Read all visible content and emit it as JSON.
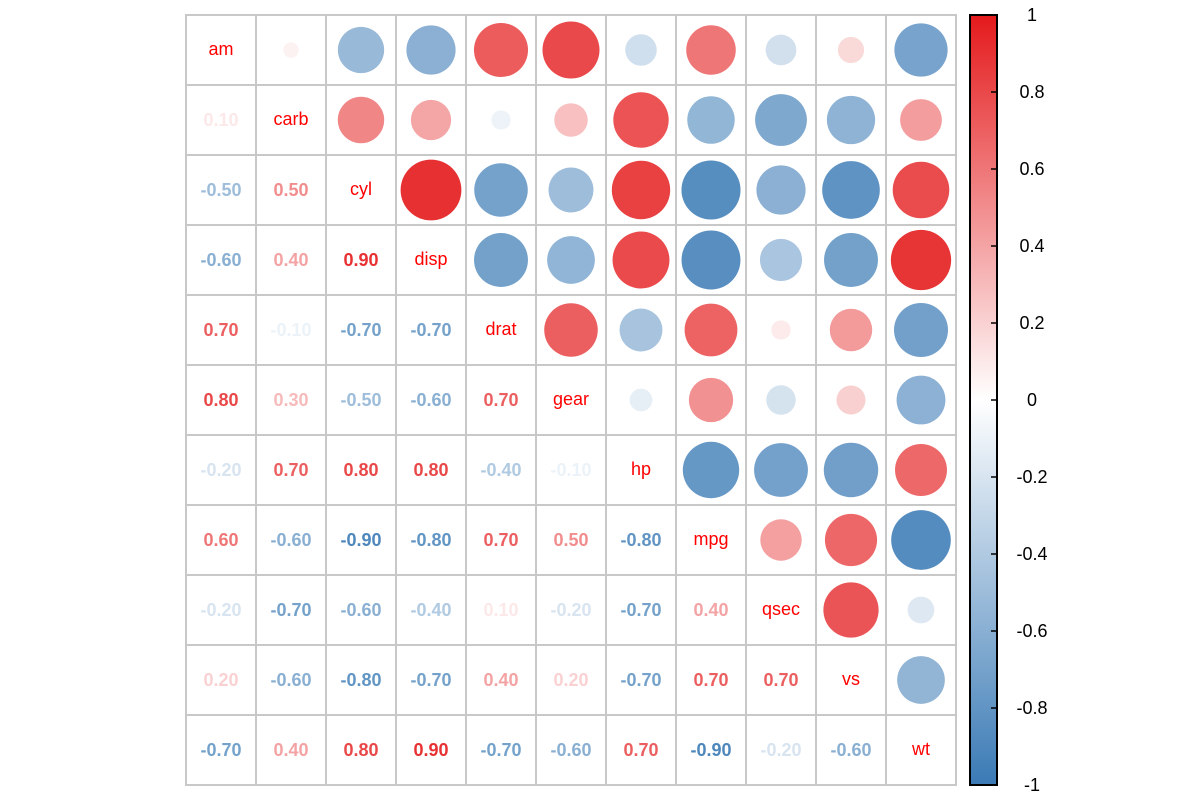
{
  "chart_data": {
    "type": "heatmap",
    "title": "",
    "variables": [
      "am",
      "carb",
      "cyl",
      "disp",
      "drat",
      "gear",
      "hp",
      "mpg",
      "qsec",
      "vs",
      "wt"
    ],
    "upper_method": "circle",
    "lower_method": "number",
    "matrix": [
      [
        1,
        0.058,
        -0.523,
        -0.591,
        0.713,
        0.794,
        -0.243,
        0.6,
        -0.23,
        0.168,
        -0.692
      ],
      [
        0.058,
        1,
        0.527,
        0.395,
        -0.091,
        0.274,
        0.75,
        -0.551,
        -0.656,
        -0.57,
        0.428
      ],
      [
        -0.523,
        0.527,
        1,
        0.902,
        -0.7,
        -0.493,
        0.832,
        -0.852,
        -0.591,
        -0.811,
        0.782
      ],
      [
        -0.591,
        0.395,
        0.902,
        1,
        -0.71,
        -0.556,
        0.791,
        -0.848,
        -0.434,
        -0.71,
        0.888
      ],
      [
        0.713,
        -0.091,
        -0.7,
        -0.71,
        1,
        0.7,
        -0.449,
        0.681,
        0.091,
        0.44,
        -0.712
      ],
      [
        0.794,
        0.274,
        -0.493,
        -0.556,
        0.7,
        1,
        -0.126,
        0.48,
        -0.213,
        0.206,
        -0.583
      ],
      [
        -0.243,
        0.75,
        0.832,
        0.791,
        -0.449,
        -0.126,
        1,
        -0.776,
        -0.708,
        -0.723,
        0.659
      ],
      [
        0.6,
        -0.551,
        -0.852,
        -0.848,
        0.681,
        0.48,
        -0.776,
        1,
        0.419,
        0.664,
        -0.868
      ],
      [
        -0.23,
        -0.656,
        -0.591,
        -0.434,
        0.091,
        -0.213,
        -0.708,
        0.419,
        1,
        0.745,
        -0.175
      ],
      [
        0.168,
        -0.57,
        -0.811,
        -0.71,
        0.44,
        0.206,
        -0.723,
        0.664,
        0.745,
        1,
        -0.555
      ],
      [
        -0.692,
        0.428,
        0.782,
        0.888,
        -0.712,
        -0.583,
        0.659,
        -0.868,
        -0.175,
        -0.555,
        1
      ]
    ],
    "lower_labels": [
      [],
      [
        "0.10"
      ],
      [
        "-0.50",
        "0.50"
      ],
      [
        "-0.60",
        "0.40",
        "0.90"
      ],
      [
        "0.70",
        "-0.10",
        "-0.70",
        "-0.70"
      ],
      [
        "0.80",
        "0.30",
        "-0.50",
        "-0.60",
        "0.70"
      ],
      [
        "-0.20",
        "0.70",
        "0.80",
        "0.80",
        "-0.40",
        "-0.10"
      ],
      [
        "0.60",
        "-0.60",
        "-0.90",
        "-0.80",
        "0.70",
        "0.50",
        "-0.80"
      ],
      [
        "-0.20",
        "-0.70",
        "-0.60",
        "-0.40",
        "0.10",
        "-0.20",
        "-0.70",
        "0.40"
      ],
      [
        "0.20",
        "-0.60",
        "-0.80",
        "-0.70",
        "0.40",
        "0.20",
        "-0.70",
        "0.70",
        "0.70"
      ],
      [
        "-0.70",
        "0.40",
        "0.80",
        "0.90",
        "-0.70",
        "-0.60",
        "0.70",
        "-0.90",
        "-0.20",
        "-0.60"
      ]
    ],
    "colorbar": {
      "range": [
        -1,
        1
      ],
      "ticks": [
        "1",
        "0.8",
        "0.6",
        "0.4",
        "0.2",
        "0",
        "-0.2",
        "-0.4",
        "-0.6",
        "-0.8",
        "-1"
      ],
      "colors": {
        "neg": "#3A7AB5",
        "mid": "#FFFFFF",
        "pos": "#E41A1C"
      },
      "placement": "right"
    },
    "diag_label_color": "#FF0000"
  }
}
